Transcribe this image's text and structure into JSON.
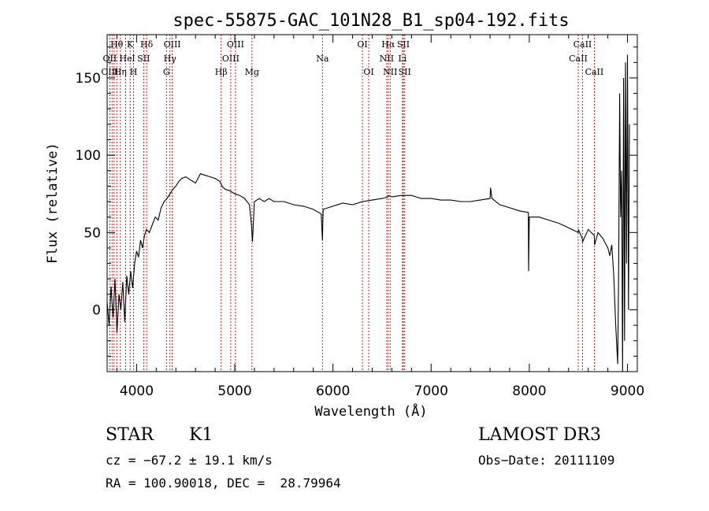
{
  "chart_data": {
    "type": "line",
    "title": "spec-55875-GAC_101N28_B1_sp04-192.fits",
    "xlabel": "Wavelength (Å)",
    "ylabel": "Flux (relative)",
    "xlim": [
      3700,
      9100
    ],
    "ylim": [
      -40,
      178
    ],
    "xticks": [
      4000,
      5000,
      6000,
      7000,
      8000,
      9000
    ],
    "yticks": [
      0,
      50,
      100,
      150
    ],
    "series": [
      {
        "name": "flux",
        "x": [
          3700,
          3720,
          3740,
          3760,
          3780,
          3800,
          3820,
          3840,
          3860,
          3880,
          3900,
          3920,
          3940,
          3960,
          3980,
          4000,
          4020,
          4040,
          4060,
          4080,
          4100,
          4130,
          4160,
          4190,
          4220,
          4250,
          4280,
          4310,
          4340,
          4370,
          4400,
          4430,
          4460,
          4500,
          4550,
          4600,
          4650,
          4700,
          4750,
          4800,
          4850,
          4870,
          4900,
          4950,
          5000,
          5050,
          5100,
          5150,
          5170,
          5180,
          5200,
          5250,
          5300,
          5350,
          5400,
          5500,
          5600,
          5700,
          5800,
          5880,
          5893,
          5900,
          5950,
          6000,
          6100,
          6200,
          6300,
          6400,
          6500,
          6560,
          6563,
          6600,
          6700,
          6800,
          6900,
          7000,
          7100,
          7200,
          7300,
          7400,
          7500,
          7600,
          7605,
          7620,
          7700,
          7800,
          7900,
          7990,
          7993,
          8000,
          8100,
          8200,
          8300,
          8400,
          8498,
          8500,
          8540,
          8542,
          8600,
          8662,
          8665,
          8700,
          8750,
          8800,
          8820,
          8840,
          8860,
          8880,
          8900,
          8910,
          8920,
          8930,
          8940,
          8950,
          8960,
          8970,
          8980,
          8990,
          9000,
          9010,
          9020
        ],
        "values": [
          5,
          -10,
          15,
          -5,
          20,
          -15,
          10,
          0,
          18,
          -8,
          22,
          10,
          25,
          14,
          30,
          38,
          34,
          45,
          40,
          48,
          52,
          50,
          55,
          60,
          58,
          66,
          70,
          72,
          75,
          78,
          80,
          83,
          85,
          86,
          84,
          82,
          88,
          87,
          86,
          85,
          83,
          80,
          78,
          77,
          75,
          74,
          72,
          68,
          55,
          44,
          70,
          72,
          70,
          72,
          70,
          70,
          68,
          67,
          65,
          62,
          45,
          65,
          66,
          67,
          69,
          68,
          70,
          71,
          72,
          73,
          74,
          73,
          74,
          74,
          72,
          72,
          71,
          71,
          70,
          70,
          71,
          72,
          79,
          72,
          68,
          66,
          64,
          63,
          25,
          60,
          60,
          58,
          56,
          53,
          50,
          52,
          46,
          44,
          52,
          48,
          42,
          50,
          46,
          40,
          35,
          42,
          22,
          -10,
          -35,
          25,
          140,
          60,
          90,
          -40,
          150,
          -20,
          160,
          30,
          165,
          0,
          120
        ]
      }
    ]
  },
  "annotations": {
    "spectral_lines": [
      {
        "label": "Hθ",
        "wavelength": 3798,
        "row": 1
      },
      {
        "label": "OII",
        "wavelength": 3727,
        "row": 2
      },
      {
        "label": "OIII",
        "wavelength": 3727,
        "row": 3
      },
      {
        "label": "Hη",
        "wavelength": 3835,
        "row": 3
      },
      {
        "label": "He",
        "wavelength": 3889,
        "row": 2
      },
      {
        "label": "K",
        "wavelength": 3934,
        "row": 1
      },
      {
        "label": "H",
        "wavelength": 3969,
        "row": 3
      },
      {
        "label": "I",
        "wavelength": 3969,
        "row": 2
      },
      {
        "label": "SII",
        "wavelength": 4072,
        "row": 2
      },
      {
        "label": "Hδ",
        "wavelength": 4102,
        "row": 1
      },
      {
        "label": "OIII",
        "wavelength": 4363,
        "row": 1
      },
      {
        "label": "Hγ",
        "wavelength": 4340,
        "row": 2
      },
      {
        "label": "G",
        "wavelength": 4304,
        "row": 3
      },
      {
        "label": "Hβ",
        "wavelength": 4861,
        "row": 3
      },
      {
        "label": "OIII",
        "wavelength": 5007,
        "row": 1
      },
      {
        "label": "OIII",
        "wavelength": 4959,
        "row": 2
      },
      {
        "label": "Mg",
        "wavelength": 5175,
        "row": 3
      },
      {
        "label": "Na",
        "wavelength": 5893,
        "row": 2
      },
      {
        "label": "OI",
        "wavelength": 6300,
        "row": 1
      },
      {
        "label": "OI",
        "wavelength": 6364,
        "row": 3
      },
      {
        "label": "Hα",
        "wavelength": 6563,
        "row": 1
      },
      {
        "label": "SII",
        "wavelength": 6717,
        "row": 1
      },
      {
        "label": "NII",
        "wavelength": 6548,
        "row": 2
      },
      {
        "label": "Li",
        "wavelength": 6708,
        "row": 2
      },
      {
        "label": "NII",
        "wavelength": 6583,
        "row": 3
      },
      {
        "label": "SII",
        "wavelength": 6731,
        "row": 3
      },
      {
        "label": "CaII",
        "wavelength": 8542,
        "row": 1
      },
      {
        "label": "CaII",
        "wavelength": 8498,
        "row": 2
      },
      {
        "label": "CaII",
        "wavelength": 8662,
        "row": 3
      }
    ],
    "line_markers": [
      3727,
      3750,
      3771,
      3798,
      3835,
      3889,
      3934,
      3969,
      4072,
      4102,
      4304,
      4340,
      4363,
      4861,
      4959,
      5007,
      5175,
      5893,
      6300,
      6364,
      6548,
      6563,
      6583,
      6708,
      6717,
      6731,
      8498,
      8542,
      8662
    ],
    "line_color": "#cc0000"
  },
  "info": {
    "object_class": "STAR",
    "subclass": "K1",
    "survey": "LAMOST DR3",
    "cz": "cz = −67.2 ± 19.1 km/s",
    "obs_date": "Obs−Date: 20111109",
    "coords": "RA = 100.90018, DEC =  28.79964"
  }
}
